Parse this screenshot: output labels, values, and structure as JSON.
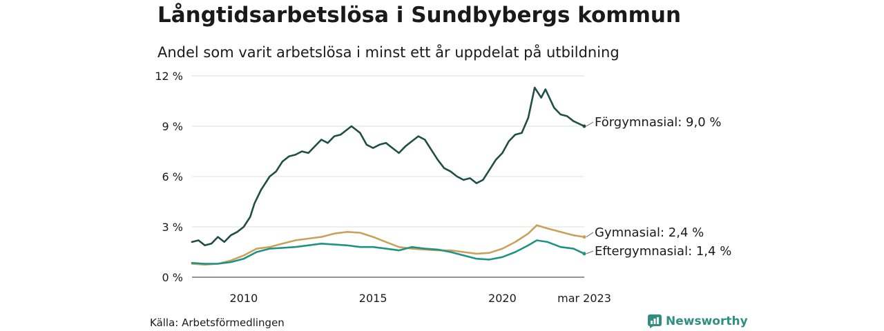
{
  "header": {
    "title": "Långtidsarbetslösa i Sundbybergs kommun",
    "subtitle": "Andel som varit arbetslösa i minst ett år uppdelat på utbildning"
  },
  "footer": {
    "source": "Källa: Arbetsförmedlingen",
    "brand": "Newsworthy",
    "brand_icon": "newsworthy-logo-icon"
  },
  "chart_data": {
    "type": "line",
    "x_range": [
      "2008-01",
      "2023-03"
    ],
    "ylim": [
      0,
      12
    ],
    "y_ticks": [
      0,
      3,
      6,
      9,
      12
    ],
    "y_tick_labels": [
      "0 %",
      "3 %",
      "6 %",
      "9 %",
      "12 %"
    ],
    "x_ticks": [
      "2010-01",
      "2015-01",
      "2020-01",
      "2023-03"
    ],
    "x_tick_labels": [
      "2010",
      "2015",
      "2020",
      "mar 2023"
    ],
    "grid": "horizontal",
    "legend": "direct labels at line ends",
    "series": [
      {
        "name": "Förgymnasial",
        "end_label": "Förgymnasial: 9,0 %",
        "color": "#1f4e46",
        "points": [
          [
            "2008-01",
            2.1
          ],
          [
            "2008-04",
            2.2
          ],
          [
            "2008-07",
            1.9
          ],
          [
            "2008-10",
            2.0
          ],
          [
            "2009-01",
            2.4
          ],
          [
            "2009-04",
            2.1
          ],
          [
            "2009-07",
            2.5
          ],
          [
            "2009-10",
            2.7
          ],
          [
            "2010-01",
            3.0
          ],
          [
            "2010-04",
            3.6
          ],
          [
            "2010-06",
            4.4
          ],
          [
            "2010-09",
            5.2
          ],
          [
            "2011-01",
            6.0
          ],
          [
            "2011-04",
            6.3
          ],
          [
            "2011-07",
            6.9
          ],
          [
            "2011-10",
            7.2
          ],
          [
            "2012-01",
            7.3
          ],
          [
            "2012-04",
            7.5
          ],
          [
            "2012-07",
            7.4
          ],
          [
            "2012-10",
            7.8
          ],
          [
            "2013-01",
            8.2
          ],
          [
            "2013-04",
            8.0
          ],
          [
            "2013-07",
            8.4
          ],
          [
            "2013-10",
            8.5
          ],
          [
            "2014-01",
            8.8
          ],
          [
            "2014-03",
            9.0
          ],
          [
            "2014-07",
            8.6
          ],
          [
            "2014-10",
            7.9
          ],
          [
            "2015-01",
            7.7
          ],
          [
            "2015-04",
            7.9
          ],
          [
            "2015-07",
            8.0
          ],
          [
            "2015-10",
            7.7
          ],
          [
            "2016-01",
            7.4
          ],
          [
            "2016-04",
            7.8
          ],
          [
            "2016-07",
            8.1
          ],
          [
            "2016-10",
            8.4
          ],
          [
            "2017-01",
            8.2
          ],
          [
            "2017-04",
            7.6
          ],
          [
            "2017-07",
            7.0
          ],
          [
            "2017-10",
            6.5
          ],
          [
            "2018-01",
            6.3
          ],
          [
            "2018-04",
            6.0
          ],
          [
            "2018-07",
            5.8
          ],
          [
            "2018-10",
            5.9
          ],
          [
            "2019-01",
            5.6
          ],
          [
            "2019-04",
            5.8
          ],
          [
            "2019-07",
            6.4
          ],
          [
            "2019-10",
            7.0
          ],
          [
            "2020-01",
            7.4
          ],
          [
            "2020-04",
            8.1
          ],
          [
            "2020-07",
            8.5
          ],
          [
            "2020-10",
            8.6
          ],
          [
            "2021-01",
            9.5
          ],
          [
            "2021-04",
            11.3
          ],
          [
            "2021-07",
            10.7
          ],
          [
            "2021-09",
            11.2
          ],
          [
            "2022-01",
            10.1
          ],
          [
            "2022-04",
            9.7
          ],
          [
            "2022-07",
            9.6
          ],
          [
            "2022-10",
            9.3
          ],
          [
            "2023-03",
            9.0
          ]
        ]
      },
      {
        "name": "Gymnasial",
        "end_label": "Gymnasial: 2,4 %",
        "color": "#c9a25a",
        "points": [
          [
            "2008-01",
            0.8
          ],
          [
            "2008-07",
            0.75
          ],
          [
            "2009-01",
            0.8
          ],
          [
            "2009-07",
            1.0
          ],
          [
            "2010-01",
            1.3
          ],
          [
            "2010-07",
            1.7
          ],
          [
            "2011-01",
            1.8
          ],
          [
            "2011-07",
            2.0
          ],
          [
            "2012-01",
            2.2
          ],
          [
            "2012-07",
            2.3
          ],
          [
            "2013-01",
            2.4
          ],
          [
            "2013-07",
            2.6
          ],
          [
            "2014-01",
            2.7
          ],
          [
            "2014-07",
            2.65
          ],
          [
            "2015-01",
            2.4
          ],
          [
            "2015-07",
            2.1
          ],
          [
            "2016-01",
            1.8
          ],
          [
            "2016-07",
            1.7
          ],
          [
            "2017-01",
            1.65
          ],
          [
            "2017-07",
            1.6
          ],
          [
            "2018-01",
            1.6
          ],
          [
            "2018-07",
            1.5
          ],
          [
            "2019-01",
            1.4
          ],
          [
            "2019-07",
            1.45
          ],
          [
            "2020-01",
            1.7
          ],
          [
            "2020-07",
            2.1
          ],
          [
            "2021-01",
            2.6
          ],
          [
            "2021-05",
            3.1
          ],
          [
            "2021-10",
            2.9
          ],
          [
            "2022-04",
            2.7
          ],
          [
            "2022-10",
            2.5
          ],
          [
            "2023-03",
            2.4
          ]
        ]
      },
      {
        "name": "Eftergymnasial",
        "end_label": "Eftergymnasial: 1,4 %",
        "color": "#1e9383",
        "points": [
          [
            "2008-01",
            0.85
          ],
          [
            "2008-07",
            0.8
          ],
          [
            "2009-01",
            0.8
          ],
          [
            "2009-07",
            0.9
          ],
          [
            "2010-01",
            1.1
          ],
          [
            "2010-07",
            1.5
          ],
          [
            "2011-01",
            1.7
          ],
          [
            "2011-07",
            1.75
          ],
          [
            "2012-01",
            1.8
          ],
          [
            "2012-07",
            1.9
          ],
          [
            "2013-01",
            2.0
          ],
          [
            "2013-07",
            1.95
          ],
          [
            "2014-01",
            1.9
          ],
          [
            "2014-07",
            1.8
          ],
          [
            "2015-01",
            1.8
          ],
          [
            "2015-07",
            1.7
          ],
          [
            "2016-01",
            1.6
          ],
          [
            "2016-07",
            1.8
          ],
          [
            "2017-01",
            1.7
          ],
          [
            "2017-07",
            1.65
          ],
          [
            "2018-01",
            1.5
          ],
          [
            "2018-07",
            1.3
          ],
          [
            "2019-01",
            1.1
          ],
          [
            "2019-07",
            1.05
          ],
          [
            "2020-01",
            1.2
          ],
          [
            "2020-07",
            1.5
          ],
          [
            "2021-01",
            1.9
          ],
          [
            "2021-05",
            2.2
          ],
          [
            "2021-10",
            2.1
          ],
          [
            "2022-04",
            1.8
          ],
          [
            "2022-10",
            1.7
          ],
          [
            "2023-03",
            1.4
          ]
        ]
      }
    ]
  }
}
